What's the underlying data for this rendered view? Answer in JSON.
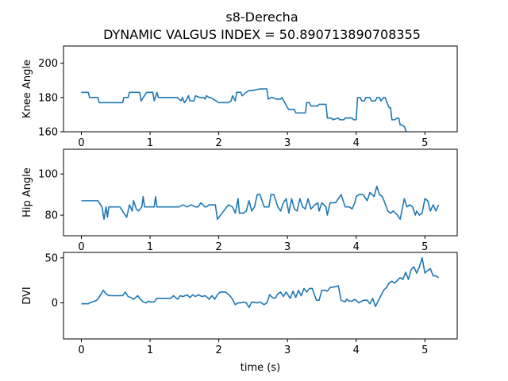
{
  "figure": {
    "title_line1": "s8-Derecha",
    "title_line2": "DYNAMIC VALGUS INDEX = 50.890713890708355",
    "line_color": "#1f77b4"
  },
  "chart_data": [
    {
      "type": "line",
      "ylabel": "Knee Angle",
      "xlabel": "",
      "xlim": [
        -0.26,
        5.47
      ],
      "ylim": [
        160,
        210
      ],
      "xticks": [
        0,
        1,
        2,
        3,
        4,
        5
      ],
      "yticks": [
        160,
        180,
        200
      ],
      "series": [
        {
          "x": [
            0,
            0.1,
            0.12,
            0.24,
            0.26,
            0.6,
            0.62,
            0.68,
            0.7,
            0.85,
            0.87,
            0.95,
            0.96,
            1.04,
            1.06,
            1.1,
            1.12,
            1.3,
            1.4,
            1.45,
            1.47,
            1.5,
            1.52,
            1.56,
            1.58,
            1.64,
            1.66,
            1.72,
            1.78,
            1.8,
            1.82,
            1.86,
            1.88,
            2.0,
            2.02,
            2.14,
            2.18,
            2.2,
            2.24,
            2.26,
            2.32,
            2.34,
            2.4,
            2.44,
            2.48,
            2.6,
            2.62,
            2.7,
            2.72,
            2.76,
            2.78,
            2.84,
            2.9,
            2.92,
            3.0,
            3.02,
            3.1,
            3.12,
            3.26,
            3.28,
            3.32,
            3.34,
            3.44,
            3.46,
            3.56,
            3.58,
            3.64,
            3.66,
            3.74,
            3.76,
            3.82,
            3.84,
            3.94,
            3.96,
            4.0,
            4.02,
            4.06,
            4.08,
            4.12,
            4.14,
            4.2,
            4.22,
            4.28,
            4.3,
            4.34,
            4.36,
            4.4,
            4.42,
            4.46,
            4.48,
            4.5,
            4.52,
            4.56,
            4.6,
            4.62,
            4.64,
            4.66,
            4.7,
            4.72,
            4.76,
            4.82
          ],
          "y": [
            183,
            183,
            180,
            180,
            177,
            177,
            180,
            180,
            183,
            183,
            178,
            183,
            183,
            183,
            178,
            183,
            180,
            180,
            180,
            178,
            180,
            177,
            178,
            181,
            178,
            178,
            181,
            180,
            180,
            179,
            181,
            180,
            180,
            177,
            177,
            177,
            178,
            181,
            178,
            183,
            183,
            181,
            183,
            184,
            184,
            185,
            185,
            185,
            179,
            180,
            180,
            179,
            179,
            180,
            174,
            173,
            173,
            171,
            171,
            177,
            177,
            175,
            175,
            176,
            176,
            168,
            168,
            167,
            168,
            167,
            167,
            168,
            168,
            167,
            167,
            180,
            180,
            178,
            178,
            180,
            180,
            178,
            178,
            180,
            180,
            178,
            180,
            180,
            176,
            174,
            174,
            167,
            167,
            168,
            168,
            164,
            164,
            163,
            161,
            156,
            150
          ]
        }
      ]
    },
    {
      "type": "line",
      "ylabel": "Hip Angle",
      "xlabel": "",
      "xlim": [
        -0.26,
        5.47
      ],
      "ylim": [
        70,
        112
      ],
      "xticks": [
        0,
        1,
        2,
        3,
        4,
        5
      ],
      "yticks": [
        80,
        100
      ],
      "series": [
        {
          "x": [
            0,
            0.24,
            0.3,
            0.33,
            0.36,
            0.38,
            0.4,
            0.56,
            0.66,
            0.7,
            0.74,
            0.76,
            0.8,
            0.83,
            0.88,
            0.9,
            0.92,
            1.0,
            1.06,
            1.08,
            1.1,
            1.2,
            1.3,
            1.42,
            1.48,
            1.54,
            1.6,
            1.66,
            1.7,
            1.74,
            1.8,
            1.82,
            1.86,
            1.9,
            1.95,
            1.98,
            2.14,
            2.2,
            2.24,
            2.28,
            2.3,
            2.36,
            2.4,
            2.44,
            2.48,
            2.52,
            2.56,
            2.6,
            2.66,
            2.7,
            2.73,
            2.76,
            2.8,
            2.86,
            2.9,
            2.94,
            2.98,
            3.02,
            3.06,
            3.1,
            3.14,
            3.18,
            3.22,
            3.26,
            3.3,
            3.34,
            3.4,
            3.44,
            3.46,
            3.5,
            3.56,
            3.58,
            3.62,
            3.7,
            3.74,
            3.78,
            3.84,
            3.86,
            3.9,
            3.94,
            3.98,
            4.0,
            4.04,
            4.1,
            4.16,
            4.2,
            4.26,
            4.3,
            4.34,
            4.38,
            4.44,
            4.46,
            4.5,
            4.54,
            4.6,
            4.64,
            4.7,
            4.74,
            4.78,
            4.82,
            4.86,
            4.88,
            4.92,
            4.96,
            5.0,
            5.04,
            5.08,
            5.12,
            5.16,
            5.2
          ],
          "y": [
            87,
            87,
            84,
            78,
            84,
            79,
            84,
            84,
            79,
            85,
            82,
            87,
            83,
            82,
            84,
            89,
            84,
            84,
            84,
            89,
            84,
            84,
            84,
            84,
            85,
            84,
            85,
            84,
            84,
            86,
            84,
            84,
            85,
            85,
            85,
            78,
            85,
            84,
            81,
            88,
            81,
            81,
            82,
            87,
            82,
            84,
            90,
            90,
            84,
            84,
            84,
            90,
            90,
            84,
            82,
            86,
            88,
            81,
            88,
            83,
            82,
            88,
            84,
            83,
            88,
            83,
            85,
            86,
            82,
            86,
            84,
            80,
            86,
            86,
            88,
            90,
            84,
            84,
            84,
            83,
            86,
            89,
            90,
            90,
            87,
            91,
            89,
            94,
            90,
            89,
            84,
            82,
            81,
            82,
            80,
            78,
            88,
            84,
            85,
            84,
            80,
            82,
            80,
            81,
            88,
            87,
            82,
            85,
            82,
            85
          ]
        }
      ]
    },
    {
      "type": "line",
      "ylabel": "DVI",
      "xlabel": "time (s)",
      "xlim": [
        -0.26,
        5.47
      ],
      "ylim": [
        -40,
        56
      ],
      "xticks": [
        0,
        1,
        2,
        3,
        4,
        5
      ],
      "yticks": [
        0,
        50
      ],
      "series": [
        {
          "x": [
            0,
            0.1,
            0.12,
            0.2,
            0.24,
            0.28,
            0.32,
            0.36,
            0.4,
            0.6,
            0.64,
            0.68,
            0.72,
            0.76,
            0.82,
            0.86,
            0.9,
            0.94,
            0.98,
            1.0,
            1.06,
            1.1,
            1.3,
            1.34,
            1.4,
            1.44,
            1.48,
            1.54,
            1.58,
            1.62,
            1.66,
            1.7,
            1.76,
            1.8,
            1.82,
            1.86,
            1.9,
            1.94,
            1.98,
            2.02,
            2.1,
            2.16,
            2.2,
            2.24,
            2.28,
            2.32,
            2.36,
            2.4,
            2.44,
            2.48,
            2.56,
            2.6,
            2.66,
            2.7,
            2.74,
            2.78,
            2.82,
            2.86,
            2.9,
            2.94,
            2.98,
            3.04,
            3.08,
            3.12,
            3.16,
            3.2,
            3.24,
            3.28,
            3.32,
            3.36,
            3.42,
            3.46,
            3.5,
            3.54,
            3.58,
            3.62,
            3.7,
            3.74,
            3.78,
            3.84,
            3.86,
            3.9,
            3.94,
            3.98,
            4.04,
            4.08,
            4.12,
            4.16,
            4.2,
            4.24,
            4.28,
            4.32,
            4.36,
            4.4,
            4.44,
            4.48,
            4.52,
            4.56,
            4.6,
            4.64,
            4.68,
            4.72,
            4.76,
            4.8,
            4.84,
            4.88,
            4.92,
            4.96,
            5.0,
            5.04,
            5.08,
            5.12,
            5.16,
            5.2
          ],
          "y": [
            -1,
            -1,
            0,
            2,
            4,
            9,
            14,
            10,
            8,
            8,
            12,
            7,
            6,
            4,
            8,
            4,
            1,
            0,
            2,
            1,
            1,
            5,
            5,
            8,
            4,
            8,
            7,
            9,
            6,
            9,
            7,
            9,
            7,
            8,
            7,
            4,
            8,
            4,
            9,
            12,
            12,
            8,
            4,
            -2,
            0,
            0,
            1,
            0,
            -5,
            1,
            0,
            1,
            -2,
            0,
            9,
            6,
            5,
            10,
            12,
            7,
            12,
            5,
            13,
            6,
            14,
            8,
            16,
            12,
            16,
            16,
            3,
            3,
            14,
            14,
            13,
            17,
            18,
            19,
            3,
            1,
            4,
            2,
            2,
            4,
            0,
            2,
            3,
            3,
            -1,
            5,
            -4,
            2,
            8,
            14,
            17,
            22,
            24,
            22,
            25,
            28,
            26,
            34,
            26,
            37,
            40,
            33,
            40,
            50,
            33,
            36,
            38,
            30,
            30,
            28
          ]
        }
      ]
    }
  ]
}
